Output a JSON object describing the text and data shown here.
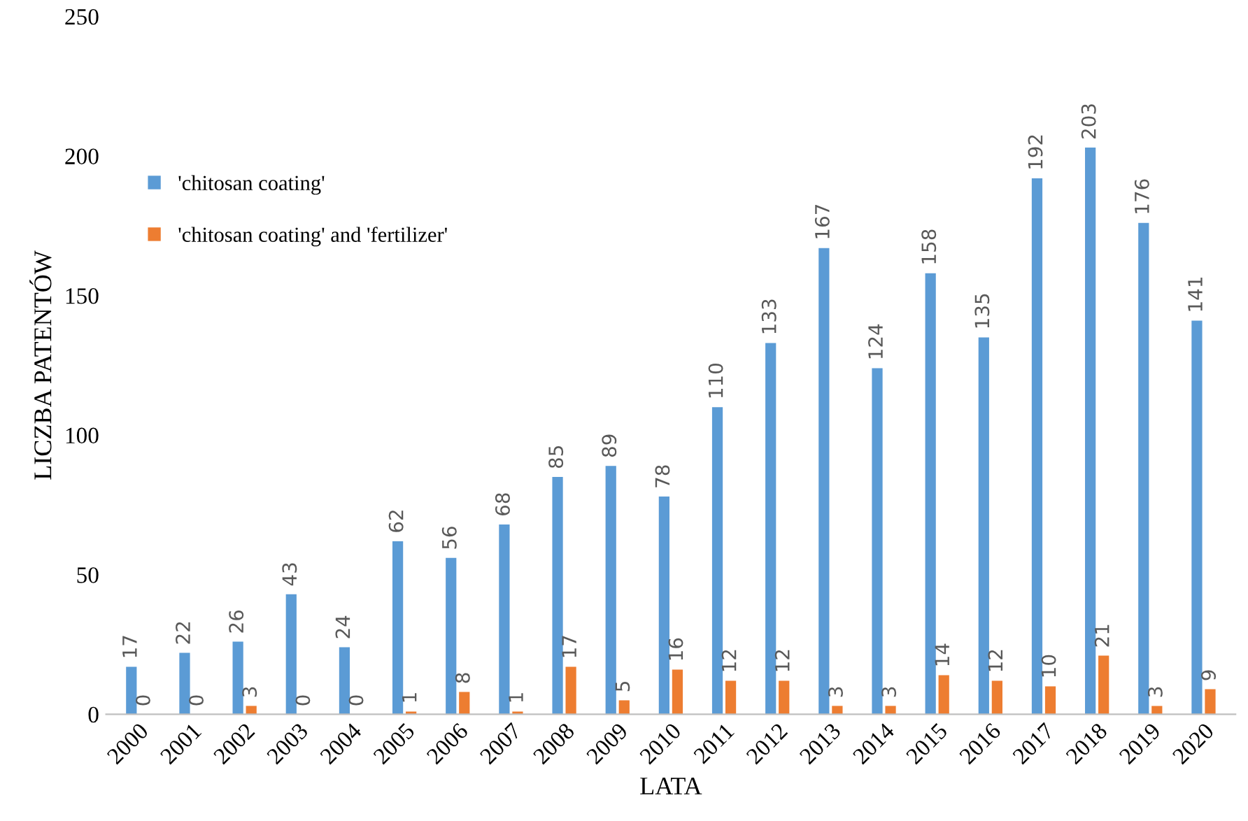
{
  "chart_data": {
    "type": "bar",
    "xlabel": "LATA",
    "ylabel": "LICZBA PATENTÓW",
    "categories": [
      "2000",
      "2001",
      "2002",
      "2003",
      "2004",
      "2005",
      "2006",
      "2007",
      "2008",
      "2009",
      "2010",
      "2011",
      "2012",
      "2013",
      "2014",
      "2015",
      "2016",
      "2017",
      "2018",
      "2019",
      "2020"
    ],
    "series": [
      {
        "name": "'chitosan coating'",
        "color": "#5b9bd5",
        "values": [
          17,
          22,
          26,
          43,
          24,
          62,
          56,
          68,
          85,
          89,
          78,
          110,
          133,
          167,
          124,
          158,
          135,
          192,
          203,
          176,
          141
        ]
      },
      {
        "name": "'chitosan coating' and 'fertilizer'",
        "color": "#ed7d31",
        "values": [
          0,
          0,
          3,
          0,
          0,
          1,
          8,
          1,
          17,
          5,
          16,
          12,
          12,
          3,
          3,
          14,
          12,
          10,
          21,
          3,
          9
        ]
      }
    ],
    "ylim": [
      0,
      250
    ],
    "yticks": [
      0,
      50,
      100,
      150,
      200,
      250
    ],
    "data_labels": true,
    "legend": "top left",
    "grid": false
  }
}
